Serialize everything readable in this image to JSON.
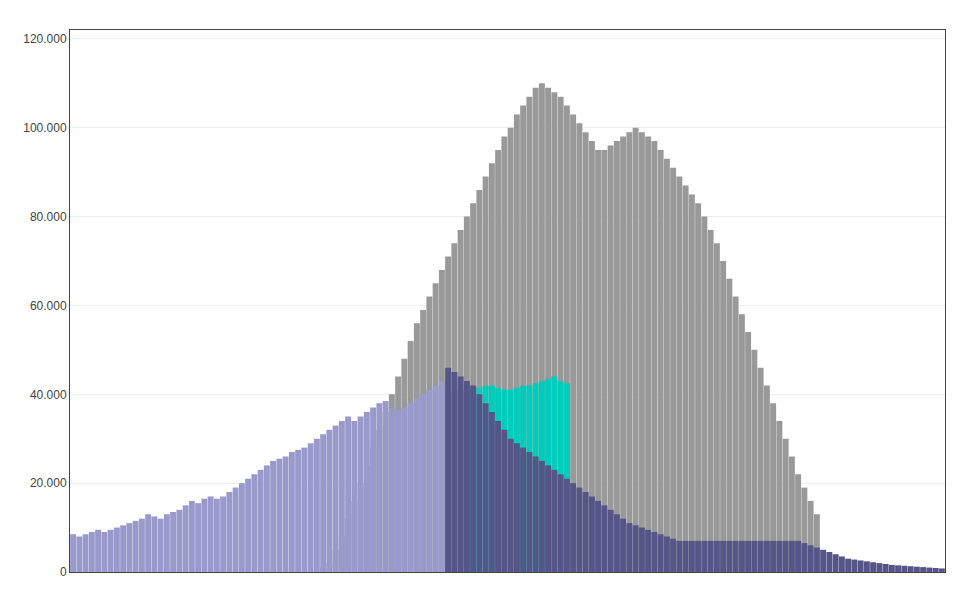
{
  "chart_data": {
    "type": "bar",
    "stacked": false,
    "categories": [
      null,
      null,
      null,
      null,
      null,
      null,
      null,
      null,
      null,
      null,
      null,
      null,
      null,
      null,
      null,
      null,
      null,
      null,
      null,
      null,
      null,
      null,
      null,
      null,
      null,
      null,
      null,
      null,
      null,
      null,
      null,
      null,
      null,
      null,
      null,
      null,
      null,
      null,
      null,
      null,
      null,
      null,
      null,
      null,
      null,
      null,
      null,
      null,
      null,
      null,
      null,
      null,
      null,
      null,
      null,
      null,
      null,
      null,
      null,
      null,
      null,
      null,
      null,
      null,
      null,
      null,
      null,
      null,
      null,
      null,
      null,
      null,
      null,
      null,
      null,
      null,
      null,
      null,
      null,
      null,
      null,
      null,
      null,
      null,
      null,
      null,
      null,
      null,
      null,
      null,
      null,
      null,
      null,
      null,
      null,
      null,
      null,
      null,
      null,
      null,
      null,
      null,
      null,
      null,
      null,
      null,
      null,
      null,
      null,
      null,
      null,
      null,
      null,
      null,
      null,
      null,
      null,
      null,
      null,
      null,
      null,
      null,
      null,
      null,
      null,
      null,
      null,
      null,
      null,
      null,
      null,
      null,
      null,
      null,
      null,
      null,
      null,
      null,
      null,
      null
    ],
    "series": [
      {
        "color": "#999999",
        "values": [
          null,
          null,
          null,
          null,
          null,
          null,
          null,
          null,
          null,
          null,
          null,
          null,
          null,
          null,
          null,
          null,
          null,
          null,
          null,
          null,
          null,
          null,
          null,
          null,
          null,
          null,
          null,
          null,
          null,
          null,
          null,
          null,
          null,
          null,
          null,
          null,
          null,
          null,
          null,
          null,
          1000,
          2000,
          5000,
          8000,
          12000,
          16000,
          20000,
          24000,
          28000,
          32000,
          36000,
          40000,
          44000,
          48000,
          52000,
          56000,
          59000,
          62000,
          65000,
          68000,
          71000,
          74000,
          77000,
          80000,
          83000,
          86000,
          89000,
          92000,
          95000,
          98000,
          100000,
          103000,
          105000,
          107000,
          109000,
          110000,
          109000,
          108000,
          107000,
          105000,
          103000,
          101000,
          99000,
          97000,
          95000,
          95000,
          96000,
          97000,
          98000,
          99000,
          100000,
          99000,
          98000,
          97000,
          95000,
          93000,
          91000,
          89000,
          87000,
          85000,
          83000,
          80000,
          77000,
          74000,
          70000,
          66000,
          62000,
          58000,
          54000,
          50000,
          46000,
          42000,
          38000,
          34000,
          30000,
          26000,
          22000,
          19000,
          16000,
          13000,
          null,
          null,
          null,
          null,
          null,
          null,
          null,
          null,
          null,
          null,
          null,
          null,
          null,
          null,
          null,
          null,
          null,
          null,
          null,
          null
        ]
      },
      {
        "color": "#9999CC",
        "values": [
          8500,
          8000,
          8500,
          9000,
          9500,
          9000,
          9500,
          10000,
          10500,
          11000,
          11500,
          12000,
          13000,
          12500,
          12000,
          13000,
          13500,
          14000,
          15000,
          16000,
          15500,
          16500,
          17000,
          16500,
          17000,
          18000,
          19000,
          20000,
          21000,
          22000,
          23000,
          24000,
          25000,
          25500,
          26000,
          27000,
          27500,
          28000,
          29000,
          30000,
          31000,
          32000,
          33000,
          34000,
          35000,
          34000,
          35000,
          36000,
          37000,
          38000,
          38500,
          37000,
          36500,
          37000,
          38000,
          39000,
          40000,
          41000,
          42000,
          43000,
          null,
          null,
          null,
          null,
          null,
          null,
          null,
          null,
          null,
          null,
          null,
          null,
          null,
          null,
          null,
          null,
          null,
          null,
          null,
          null,
          null,
          null,
          null,
          null,
          null,
          null,
          null,
          null,
          null,
          null,
          null,
          null,
          null,
          null,
          null,
          null,
          null,
          null,
          null,
          null,
          null,
          null,
          null,
          null,
          null,
          null,
          null,
          null,
          null,
          null,
          null,
          null,
          null,
          null,
          null,
          null,
          null,
          null,
          null,
          null,
          null,
          null,
          null,
          null,
          null,
          null,
          null,
          null,
          null,
          null,
          null,
          null,
          null,
          null,
          null,
          null,
          null,
          null,
          null,
          null
        ]
      },
      {
        "color": "#00CCBB",
        "values": [
          null,
          null,
          null,
          null,
          null,
          null,
          null,
          null,
          null,
          null,
          null,
          null,
          null,
          null,
          null,
          null,
          null,
          null,
          null,
          null,
          null,
          null,
          null,
          null,
          null,
          null,
          null,
          null,
          null,
          null,
          null,
          null,
          null,
          null,
          null,
          null,
          null,
          null,
          null,
          null,
          null,
          null,
          null,
          null,
          null,
          null,
          null,
          null,
          null,
          null,
          null,
          null,
          null,
          null,
          null,
          null,
          null,
          null,
          null,
          null,
          40000,
          40500,
          41000,
          41500,
          41000,
          41500,
          42000,
          42000,
          41500,
          41000,
          41000,
          41500,
          42000,
          42000,
          42500,
          43000,
          43500,
          44000,
          43000,
          42500,
          null,
          null,
          null,
          null,
          null,
          null,
          null,
          null,
          null,
          null,
          null,
          null,
          null,
          null,
          null,
          null,
          null,
          null,
          null,
          null,
          null,
          null,
          null,
          null,
          null,
          null,
          null,
          null,
          null,
          null,
          null,
          null,
          null,
          null,
          null,
          null,
          null,
          null,
          null,
          null,
          null,
          null,
          null,
          null,
          null,
          null,
          null,
          null,
          null,
          null,
          null,
          null,
          null,
          null,
          null,
          null,
          null,
          null,
          null,
          null
        ]
      },
      {
        "color": "#555588",
        "values": [
          null,
          null,
          null,
          null,
          null,
          null,
          null,
          null,
          null,
          null,
          null,
          null,
          null,
          null,
          null,
          null,
          null,
          null,
          null,
          null,
          null,
          null,
          null,
          null,
          null,
          null,
          null,
          null,
          null,
          null,
          null,
          null,
          null,
          null,
          null,
          null,
          null,
          null,
          null,
          null,
          null,
          null,
          null,
          null,
          null,
          null,
          null,
          null,
          null,
          null,
          null,
          null,
          null,
          null,
          null,
          null,
          null,
          null,
          null,
          null,
          46000,
          45000,
          44000,
          43000,
          42000,
          40000,
          38000,
          36000,
          34000,
          32000,
          30000,
          29000,
          28000,
          27000,
          26000,
          25000,
          24000,
          23000,
          22000,
          21000,
          20000,
          19000,
          18000,
          17000,
          16000,
          15000,
          14000,
          13000,
          12000,
          11000,
          10500,
          10000,
          9500,
          9000,
          8500,
          8000,
          7500,
          7000,
          7000,
          7000,
          7000,
          7000,
          7000,
          7000,
          7000,
          7000,
          7000,
          7000,
          7000,
          7000,
          7000,
          7000,
          7000,
          7000,
          7000,
          7000,
          7000,
          6500,
          6000,
          5500,
          5000,
          4500,
          4000,
          3500,
          3000,
          2800,
          2600,
          2400,
          2200,
          2000,
          1800,
          1600,
          1500,
          1400,
          1300,
          1200,
          1100,
          1000,
          900,
          800
        ]
      }
    ],
    "ylim": [
      0,
      122000
    ],
    "yticks": [
      0,
      {
        "value": 20000,
        "label": "20.000"
      },
      {
        "value": 40000,
        "label": "40.000"
      },
      {
        "value": 60000,
        "label": "60.000"
      },
      {
        "value": 80000,
        "label": "80.000"
      },
      {
        "value": 100000,
        "label": "100.000"
      },
      {
        "value": 120000,
        "label": "120.000"
      }
    ],
    "grid": true,
    "tick_labels": "y"
  }
}
